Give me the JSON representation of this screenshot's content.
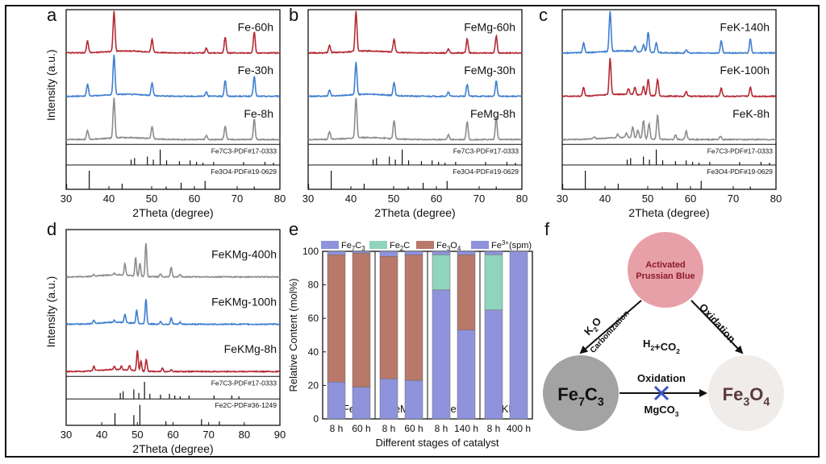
{
  "chart_data": [
    {
      "panel": "a",
      "type": "line",
      "xlabel": "2Theta (degree)",
      "ylabel": "Intensity (a.u.)",
      "xlim": [
        30,
        80
      ],
      "xticks": [
        30,
        40,
        50,
        60,
        70,
        80
      ],
      "series": [
        {
          "name": "Fe-60h",
          "color": "#b52a35",
          "peaks": [
            [
              35.0,
              0.3
            ],
            [
              41.2,
              1.0
            ],
            [
              50.1,
              0.32
            ],
            [
              62.8,
              0.12
            ],
            [
              67.2,
              0.4
            ],
            [
              74.0,
              0.52
            ]
          ]
        },
        {
          "name": "Fe-30h",
          "color": "#3f7fd0",
          "peaks": [
            [
              35.0,
              0.3
            ],
            [
              41.2,
              1.0
            ],
            [
              50.1,
              0.32
            ],
            [
              62.8,
              0.12
            ],
            [
              67.2,
              0.4
            ],
            [
              74.0,
              0.5
            ]
          ]
        },
        {
          "name": "Fe-8h",
          "color": "#8c8c8c",
          "peaks": [
            [
              35.0,
              0.22
            ],
            [
              41.2,
              1.0
            ],
            [
              50.1,
              0.3
            ],
            [
              62.8,
              0.1
            ],
            [
              67.2,
              0.34
            ],
            [
              74.0,
              0.5
            ]
          ]
        }
      ],
      "references": [
        {
          "label": "Fe7C3-PDF#17-0333",
          "sub": "7,3",
          "lines": [
            [
              45.2,
              0.35
            ],
            [
              46.0,
              0.45
            ],
            [
              49.0,
              0.55
            ],
            [
              50.4,
              0.35
            ],
            [
              52.0,
              1.0
            ],
            [
              53.5,
              0.3
            ],
            [
              56.5,
              0.25
            ],
            [
              59.0,
              0.3
            ],
            [
              60.5,
              0.2
            ],
            [
              62.0,
              0.15
            ],
            [
              64.5,
              0.2
            ],
            [
              71.5,
              0.2
            ],
            [
              76.5,
              0.2
            ],
            [
              78.5,
              0.15
            ]
          ]
        },
        {
          "label": "Fe3O4-PDF#19-0629",
          "sub": "3,4",
          "lines": [
            [
              30.1,
              0.3
            ],
            [
              35.4,
              1.0
            ],
            [
              43.1,
              0.3
            ],
            [
              53.4,
              0.15
            ],
            [
              56.9,
              0.35
            ],
            [
              62.5,
              0.45
            ],
            [
              74.0,
              0.15
            ]
          ]
        }
      ]
    },
    {
      "panel": "b",
      "type": "line",
      "xlabel": "2Theta (degree)",
      "ylabel": "",
      "xlim": [
        30,
        80
      ],
      "xticks": [
        30,
        40,
        50,
        60,
        70,
        80
      ],
      "series": [
        {
          "name": "FeMg-60h",
          "color": "#b52a35",
          "peaks": [
            [
              35.0,
              0.18
            ],
            [
              41.2,
              1.0
            ],
            [
              50.1,
              0.33
            ],
            [
              62.8,
              0.1
            ],
            [
              67.2,
              0.35
            ],
            [
              74.0,
              0.42
            ]
          ]
        },
        {
          "name": "FeMg-30h",
          "color": "#3f7fd0",
          "peaks": [
            [
              35.0,
              0.15
            ],
            [
              41.2,
              0.8
            ],
            [
              50.1,
              0.32
            ],
            [
              62.8,
              0.1
            ],
            [
              67.2,
              0.3
            ],
            [
              74.0,
              0.38
            ]
          ]
        },
        {
          "name": "FeMg-8h",
          "color": "#8c8c8c",
          "peaks": [
            [
              35.0,
              0.2
            ],
            [
              41.2,
              1.0
            ],
            [
              50.1,
              0.45
            ],
            [
              62.8,
              0.12
            ],
            [
              67.2,
              0.45
            ],
            [
              74.0,
              0.55
            ]
          ]
        }
      ],
      "references": [
        {
          "label": "Fe7C3-PDF#17-0333",
          "sub": "7,3",
          "lines": [
            [
              45.2,
              0.35
            ],
            [
              46.0,
              0.45
            ],
            [
              49.0,
              0.55
            ],
            [
              50.4,
              0.35
            ],
            [
              52.0,
              1.0
            ],
            [
              53.5,
              0.3
            ],
            [
              56.5,
              0.25
            ],
            [
              59.0,
              0.3
            ],
            [
              60.5,
              0.2
            ],
            [
              62.0,
              0.15
            ],
            [
              64.5,
              0.2
            ],
            [
              71.5,
              0.2
            ],
            [
              76.5,
              0.2
            ],
            [
              78.5,
              0.15
            ]
          ]
        },
        {
          "label": "Fe3O4-PDF#19-0629",
          "sub": "3,4",
          "lines": [
            [
              30.1,
              0.3
            ],
            [
              35.4,
              1.0
            ],
            [
              43.1,
              0.3
            ],
            [
              53.4,
              0.15
            ],
            [
              56.9,
              0.35
            ],
            [
              62.5,
              0.45
            ],
            [
              74.0,
              0.15
            ]
          ]
        }
      ]
    },
    {
      "panel": "c",
      "type": "line",
      "xlabel": "2Theta (degree)",
      "ylabel": "",
      "xlim": [
        30,
        80
      ],
      "xticks": [
        30,
        40,
        50,
        60,
        70,
        80
      ],
      "series": [
        {
          "name": "FeK-140h",
          "color": "#3f7fd0",
          "peaks": [
            [
              35.0,
              0.25
            ],
            [
              41.2,
              1.0
            ],
            [
              47.0,
              0.12
            ],
            [
              49.0,
              0.18
            ],
            [
              50.1,
              0.5
            ],
            [
              52.0,
              0.25
            ],
            [
              59.0,
              0.08
            ],
            [
              67.2,
              0.3
            ],
            [
              74.0,
              0.35
            ]
          ]
        },
        {
          "name": "FeK-100h",
          "color": "#b52a35",
          "peaks": [
            [
              35.0,
              0.22
            ],
            [
              41.2,
              0.9
            ],
            [
              45.5,
              0.15
            ],
            [
              47.0,
              0.18
            ],
            [
              49.0,
              0.22
            ],
            [
              50.1,
              0.4
            ],
            [
              52.3,
              0.42
            ],
            [
              59.0,
              0.12
            ],
            [
              67.2,
              0.2
            ],
            [
              74.0,
              0.22
            ]
          ]
        },
        {
          "name": "FeK-8h",
          "color": "#8c8c8c",
          "peaks": [
            [
              37.5,
              0.05
            ],
            [
              43.0,
              0.08
            ],
            [
              45.0,
              0.12
            ],
            [
              46.5,
              0.28
            ],
            [
              47.7,
              0.2
            ],
            [
              49.0,
              0.45
            ],
            [
              50.3,
              0.38
            ],
            [
              52.3,
              0.6
            ],
            [
              56.5,
              0.12
            ],
            [
              59.0,
              0.22
            ],
            [
              67.0,
              0.08
            ]
          ]
        }
      ],
      "references": [
        {
          "label": "Fe7C3-PDF#17-0333",
          "sub": "7,3",
          "lines": [
            [
              45.2,
              0.35
            ],
            [
              46.0,
              0.45
            ],
            [
              49.0,
              0.55
            ],
            [
              50.4,
              0.35
            ],
            [
              52.0,
              1.0
            ],
            [
              53.5,
              0.3
            ],
            [
              56.5,
              0.25
            ],
            [
              59.0,
              0.3
            ],
            [
              60.5,
              0.2
            ],
            [
              62.0,
              0.15
            ],
            [
              64.5,
              0.2
            ],
            [
              71.5,
              0.2
            ],
            [
              76.5,
              0.2
            ],
            [
              78.5,
              0.15
            ]
          ]
        },
        {
          "label": "Fe3O4-PDF#19-0629",
          "sub": "3,4",
          "lines": [
            [
              30.1,
              0.3
            ],
            [
              35.4,
              1.0
            ],
            [
              43.1,
              0.3
            ],
            [
              53.4,
              0.15
            ],
            [
              56.9,
              0.35
            ],
            [
              62.5,
              0.45
            ],
            [
              74.0,
              0.15
            ]
          ]
        }
      ]
    },
    {
      "panel": "d",
      "type": "line",
      "xlabel": "2Theta (degree)",
      "ylabel": "Intensity (a.u.)",
      "xlim": [
        30,
        90
      ],
      "xticks": [
        30,
        40,
        50,
        60,
        70,
        80,
        90
      ],
      "series": [
        {
          "name": "FeKMg-400h",
          "color": "#8c8c8c",
          "peaks": [
            [
              37.8,
              0.05
            ],
            [
              43.5,
              0.05
            ],
            [
              46.5,
              0.35
            ],
            [
              49.5,
              0.55
            ],
            [
              50.7,
              0.4
            ],
            [
              52.4,
              1.0
            ],
            [
              56.5,
              0.1
            ],
            [
              59.5,
              0.3
            ],
            [
              62.0,
              0.08
            ]
          ]
        },
        {
          "name": "FeKMg-100h",
          "color": "#3f7fd0",
          "peaks": [
            [
              37.8,
              0.1
            ],
            [
              43.5,
              0.06
            ],
            [
              46.5,
              0.25
            ],
            [
              49.8,
              0.4
            ],
            [
              52.4,
              0.75
            ],
            [
              56.5,
              0.08
            ],
            [
              59.5,
              0.2
            ],
            [
              62.0,
              0.06
            ]
          ]
        },
        {
          "name": "FeKMg-8h",
          "color": "#b52a35",
          "peaks": [
            [
              37.8,
              0.15
            ],
            [
              43.5,
              0.1
            ],
            [
              45.5,
              0.1
            ],
            [
              47.8,
              0.15
            ],
            [
              50.0,
              0.6
            ],
            [
              51.0,
              0.3
            ],
            [
              52.5,
              0.35
            ],
            [
              57.0,
              0.1
            ],
            [
              59.5,
              0.05
            ]
          ]
        }
      ],
      "references": [
        {
          "label": "Fe7C3-PDF#17-0333",
          "sub": "7,3",
          "lines": [
            [
              45.2,
              0.35
            ],
            [
              46.0,
              0.45
            ],
            [
              49.0,
              0.55
            ],
            [
              50.4,
              0.35
            ],
            [
              52.0,
              1.0
            ],
            [
              53.5,
              0.3
            ],
            [
              56.5,
              0.25
            ],
            [
              59.0,
              0.3
            ],
            [
              60.5,
              0.2
            ],
            [
              62.0,
              0.15
            ],
            [
              64.5,
              0.2
            ],
            [
              71.5,
              0.2
            ],
            [
              76.5,
              0.2
            ],
            [
              78.5,
              0.15
            ]
          ]
        },
        {
          "label": "Fe2C-PDF#36-1249",
          "sub": "2",
          "lines": [
            [
              43.7,
              0.6
            ],
            [
              49.0,
              0.5
            ],
            [
              50.7,
              1.0
            ],
            [
              58.0,
              0.2
            ],
            [
              68.0,
              0.3
            ],
            [
              73.0,
              0.2
            ]
          ]
        }
      ]
    },
    {
      "panel": "e",
      "type": "bar",
      "stacked": true,
      "xlabel": "Different stages of catalyst",
      "ylabel": "Relative Content (mol%)",
      "ylim": [
        0,
        100
      ],
      "yticks": [
        0,
        20,
        40,
        60,
        80,
        100
      ],
      "groups": [
        {
          "name": "Fe",
          "categories": [
            "8 h",
            "60 h"
          ]
        },
        {
          "name": "FeMg",
          "categories": [
            "8 h",
            "60 h"
          ]
        },
        {
          "name": "FeK",
          "categories": [
            "8 h",
            "140 h"
          ]
        },
        {
          "name": "FeKMg",
          "categories": [
            "8 h",
            "400 h"
          ]
        }
      ],
      "series": [
        {
          "name": "Fe7C3",
          "base": "Fe",
          "sub": "7",
          "mid": "C",
          "sub2": "3",
          "color": "#8f93dc",
          "values": [
            22,
            19,
            24,
            23,
            77,
            53,
            65,
            100
          ]
        },
        {
          "name": "Fe2C",
          "base": "Fe",
          "sub": "2",
          "mid": "C",
          "sub2": "",
          "color": "#8fd4bd",
          "values": [
            0,
            0,
            0,
            0,
            21,
            0,
            33,
            0
          ]
        },
        {
          "name": "Fe3O4",
          "base": "Fe",
          "sub": "3",
          "mid": "O",
          "sub2": "4",
          "color": "#b8786a",
          "values": [
            76,
            80,
            73,
            75,
            0,
            45,
            0,
            0
          ]
        },
        {
          "name": "Fe3+(spm)",
          "base": "Fe",
          "sup": "3+",
          "tail": "(spm)",
          "color": "#8f93dc",
          "values": [
            2,
            1,
            3,
            2,
            2,
            2,
            2,
            0
          ]
        }
      ]
    }
  ],
  "panel_labels": [
    "a",
    "b",
    "c",
    "d",
    "e",
    "f"
  ],
  "scheme": {
    "center_label": "H2+CO2",
    "nodes": {
      "top": {
        "line1": "Activated",
        "line2": "Prussian Blue",
        "color": "#e8a0a8"
      },
      "left": {
        "label": "Fe7C3",
        "color": "#a3a3a3"
      },
      "right": {
        "label": "Fe3O4",
        "color": "#efecea"
      }
    },
    "arrows": {
      "left": {
        "reagent": "K2O",
        "process": "Carbonization"
      },
      "right": {
        "label": "Oxidation"
      },
      "bottom": {
        "label": "Oxidation",
        "blocker": "MgCO3"
      }
    }
  }
}
